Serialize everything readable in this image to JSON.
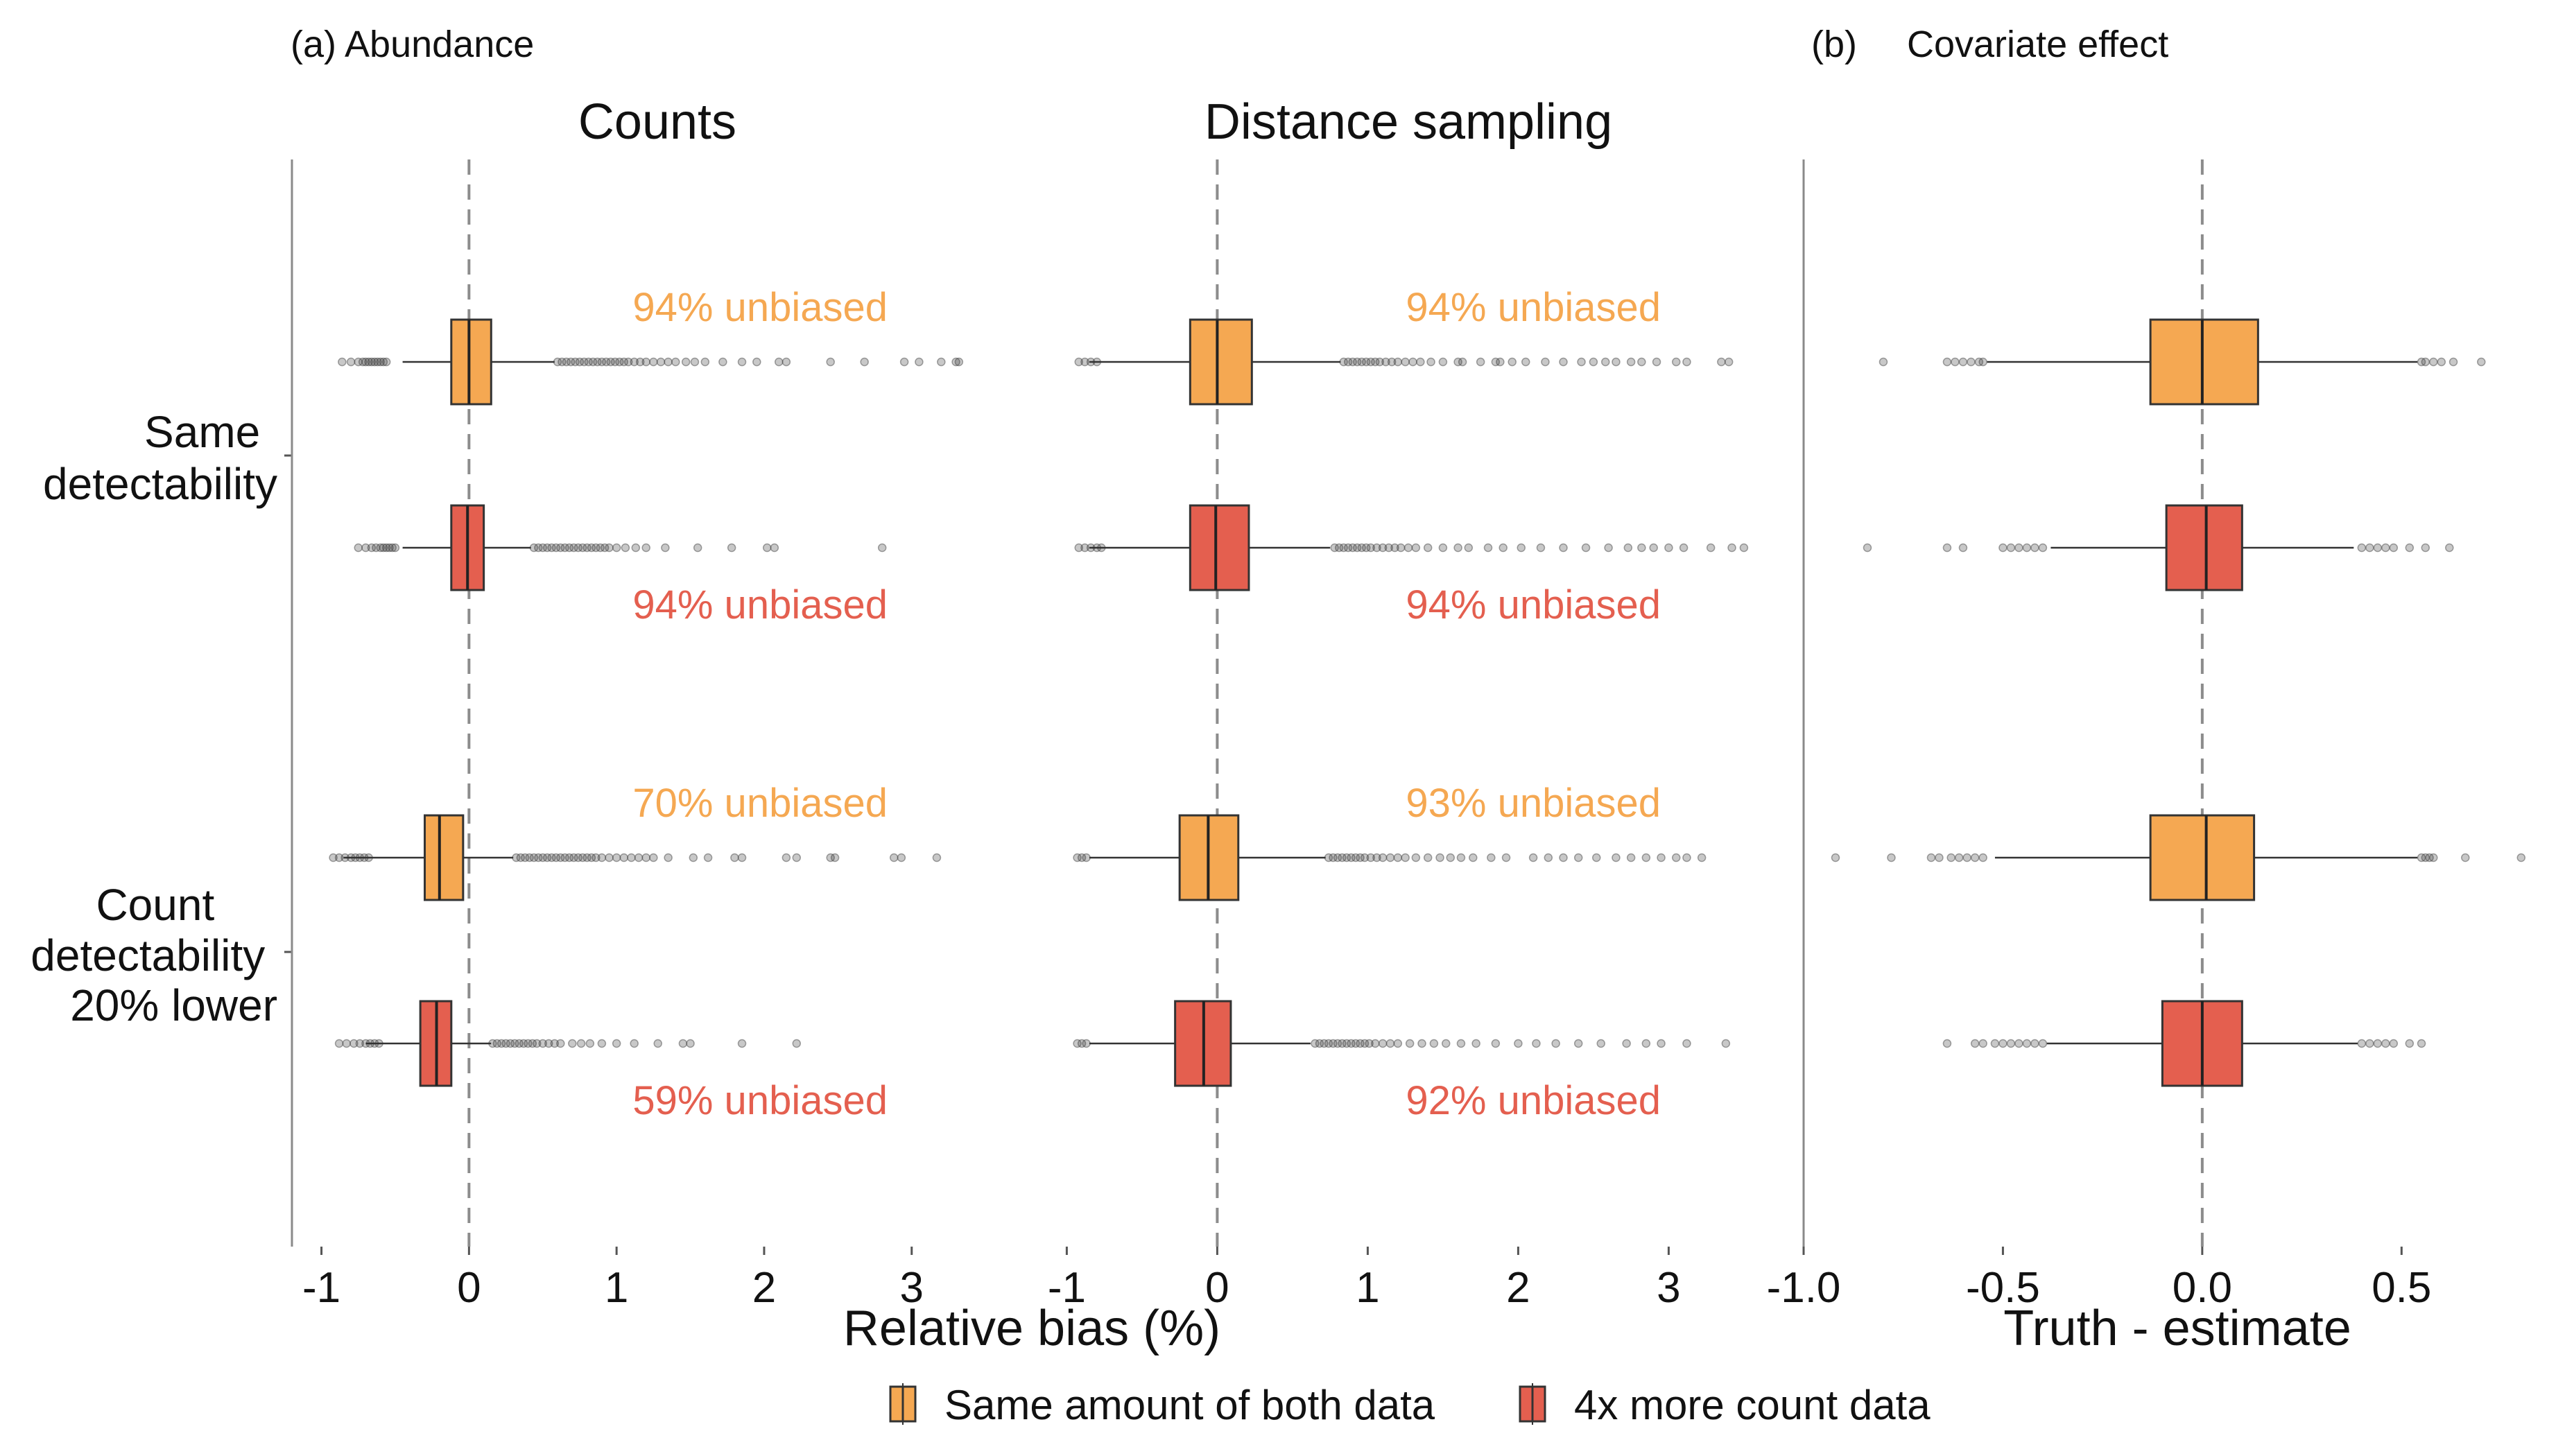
{
  "panel_labels": {
    "abundance": "(a)  Abundance",
    "covariate_tag": "(b)",
    "covariate_name": "Covariate effect"
  },
  "facet_titles": [
    "Counts",
    "Distance sampling"
  ],
  "row_labels": [
    [
      "Same",
      "detectability"
    ],
    [
      "Count",
      "detectability",
      "20% lower"
    ]
  ],
  "x_titles": {
    "abundance": "Relative bias (%)",
    "covariate": "Truth - estimate"
  },
  "legend": [
    {
      "label": "Same amount of both data",
      "color": "#F5A852"
    },
    {
      "label": "4x more count data",
      "color": "#E45F4F"
    }
  ],
  "colors": {
    "same_amount": "#F5A852",
    "more_count": "#E45F4F",
    "reference_line": "#8c8c8c",
    "box_outline": "#333333",
    "outlier": "#3a3a3a"
  },
  "chart_data": [
    {
      "type": "box",
      "panel": "Counts",
      "xlabel": "Relative bias (%)",
      "xlim": [
        -1.2,
        3.8
      ],
      "xticks": [
        -1,
        0,
        1,
        2,
        3
      ],
      "reference_line": 0,
      "groups": [
        {
          "row": "Same detectability",
          "series": "Same amount of both data",
          "q1": -0.12,
          "median": 0.0,
          "q3": 0.15,
          "whisker_low": -0.45,
          "whisker_high": 0.58,
          "outliers": [
            -0.86,
            -0.8,
            -0.75,
            -0.72,
            -0.7,
            -0.68,
            -0.66,
            -0.64,
            -0.62,
            -0.6,
            -0.58,
            -0.56,
            0.6,
            0.63,
            0.66,
            0.69,
            0.72,
            0.75,
            0.78,
            0.81,
            0.84,
            0.87,
            0.9,
            0.93,
            0.96,
            0.99,
            1.02,
            1.05,
            1.08,
            1.12,
            1.16,
            1.2,
            1.25,
            1.3,
            1.35,
            1.4,
            1.47,
            1.53,
            1.6,
            1.72,
            1.85,
            1.95,
            2.1,
            2.15,
            2.45,
            2.68,
            2.95,
            3.05,
            3.2,
            3.3,
            3.32
          ],
          "label": "94% unbiased"
        },
        {
          "row": "Same detectability",
          "series": "4x more count data",
          "q1": -0.12,
          "median": -0.01,
          "q3": 0.1,
          "whisker_low": -0.45,
          "whisker_high": 0.42,
          "outliers": [
            -0.75,
            -0.7,
            -0.66,
            -0.63,
            -0.6,
            -0.58,
            -0.56,
            -0.54,
            -0.52,
            -0.5,
            0.44,
            0.47,
            0.5,
            0.53,
            0.56,
            0.59,
            0.62,
            0.65,
            0.68,
            0.71,
            0.74,
            0.77,
            0.8,
            0.83,
            0.86,
            0.89,
            0.92,
            0.95,
            1.0,
            1.06,
            1.13,
            1.2,
            1.33,
            1.55,
            1.78,
            2.02,
            2.07,
            2.8
          ],
          "label": "94% unbiased"
        },
        {
          "row": "Count detectability 20% lower",
          "series": "Same amount of both data",
          "q1": -0.3,
          "median": -0.2,
          "q3": -0.04,
          "whisker_low": -0.85,
          "whisker_high": 0.3,
          "outliers": [
            -0.92,
            -0.88,
            -0.84,
            -0.8,
            -0.77,
            -0.74,
            -0.71,
            -0.68,
            0.32,
            0.35,
            0.38,
            0.41,
            0.44,
            0.47,
            0.5,
            0.53,
            0.56,
            0.59,
            0.62,
            0.65,
            0.68,
            0.71,
            0.74,
            0.77,
            0.8,
            0.83,
            0.86,
            0.9,
            0.95,
            1.0,
            1.05,
            1.1,
            1.15,
            1.2,
            1.25,
            1.35,
            1.52,
            1.62,
            1.8,
            1.85,
            2.15,
            2.22,
            2.45,
            2.48,
            2.88,
            2.93,
            3.17
          ],
          "label": "70% unbiased"
        },
        {
          "row": "Count detectability 20% lower",
          "series": "4x more count data",
          "q1": -0.33,
          "median": -0.22,
          "q3": -0.12,
          "whisker_low": -0.7,
          "whisker_high": 0.15,
          "outliers": [
            -0.88,
            -0.83,
            -0.78,
            -0.74,
            -0.7,
            -0.67,
            -0.64,
            -0.61,
            0.16,
            0.19,
            0.22,
            0.25,
            0.28,
            0.31,
            0.34,
            0.37,
            0.4,
            0.43,
            0.46,
            0.5,
            0.54,
            0.58,
            0.62,
            0.7,
            0.76,
            0.82,
            0.9,
            1.0,
            1.12,
            1.28,
            1.45,
            1.5,
            1.85,
            2.22
          ],
          "label": "59% unbiased"
        }
      ]
    },
    {
      "type": "box",
      "panel": "Distance sampling",
      "xlabel": "Relative bias (%)",
      "xlim": [
        -1.2,
        3.8
      ],
      "xticks": [
        -1,
        0,
        1,
        2,
        3
      ],
      "reference_line": 0,
      "groups": [
        {
          "row": "Same detectability",
          "series": "Same amount of both data",
          "q1": -0.18,
          "median": 0.0,
          "q3": 0.23,
          "whisker_low": -0.85,
          "whisker_high": 0.82,
          "outliers": [
            -0.92,
            -0.88,
            -0.84,
            -0.8,
            0.84,
            0.87,
            0.9,
            0.93,
            0.96,
            0.99,
            1.02,
            1.05,
            1.08,
            1.12,
            1.16,
            1.2,
            1.25,
            1.3,
            1.35,
            1.42,
            1.5,
            1.6,
            1.63,
            1.75,
            1.85,
            1.88,
            1.96,
            2.05,
            2.18,
            2.3,
            2.42,
            2.5,
            2.58,
            2.65,
            2.75,
            2.82,
            2.92,
            3.05,
            3.12,
            3.35,
            3.4
          ],
          "label": "94% unbiased"
        },
        {
          "row": "Same detectability",
          "series": "4x more count data",
          "q1": -0.18,
          "median": -0.01,
          "q3": 0.21,
          "whisker_low": -0.85,
          "whisker_high": 0.75,
          "outliers": [
            -0.92,
            -0.88,
            -0.84,
            -0.8,
            -0.77,
            0.78,
            0.81,
            0.84,
            0.87,
            0.9,
            0.93,
            0.96,
            0.99,
            1.02,
            1.06,
            1.1,
            1.14,
            1.18,
            1.22,
            1.27,
            1.32,
            1.4,
            1.5,
            1.6,
            1.67,
            1.8,
            1.9,
            2.02,
            2.15,
            2.3,
            2.45,
            2.6,
            2.73,
            2.82,
            2.9,
            3.0,
            3.1,
            3.28,
            3.42,
            3.5
          ],
          "label": "94% unbiased"
        },
        {
          "row": "Count detectability 20% lower",
          "series": "Same amount of both data",
          "q1": -0.25,
          "median": -0.06,
          "q3": 0.14,
          "whisker_low": -0.85,
          "whisker_high": 0.72,
          "outliers": [
            -0.93,
            -0.9,
            -0.87,
            0.74,
            0.77,
            0.8,
            0.83,
            0.86,
            0.89,
            0.92,
            0.95,
            0.98,
            1.02,
            1.06,
            1.1,
            1.15,
            1.2,
            1.25,
            1.32,
            1.4,
            1.48,
            1.55,
            1.62,
            1.7,
            1.82,
            1.92,
            2.1,
            2.2,
            2.3,
            2.4,
            2.52,
            2.65,
            2.75,
            2.85,
            2.95,
            3.05,
            3.12,
            3.22
          ],
          "label": "93% unbiased"
        },
        {
          "row": "Count detectability 20% lower",
          "series": "4x more count data",
          "q1": -0.28,
          "median": -0.09,
          "q3": 0.09,
          "whisker_low": -0.85,
          "whisker_high": 0.62,
          "outliers": [
            -0.93,
            -0.9,
            -0.87,
            0.65,
            0.68,
            0.71,
            0.74,
            0.77,
            0.8,
            0.83,
            0.86,
            0.89,
            0.92,
            0.95,
            0.98,
            1.01,
            1.05,
            1.1,
            1.15,
            1.2,
            1.28,
            1.36,
            1.44,
            1.52,
            1.62,
            1.72,
            1.85,
            2.0,
            2.12,
            2.25,
            2.4,
            2.55,
            2.72,
            2.85,
            2.95,
            3.12,
            3.38
          ],
          "label": "92% unbiased"
        }
      ]
    },
    {
      "type": "box",
      "panel": "Covariate effect",
      "xlabel": "Truth - estimate",
      "xlim": [
        -1.0,
        0.87
      ],
      "xticks": [
        -1.0,
        -0.5,
        0.0,
        0.5
      ],
      "xtick_labels": [
        "-1.0",
        "-0.5",
        "0.0",
        "0.5"
      ],
      "reference_line": 0,
      "groups": [
        {
          "row": "Same detectability",
          "series": "Same amount of both data",
          "q1": -0.13,
          "median": 0.0,
          "q3": 0.14,
          "whisker_low": -0.54,
          "whisker_high": 0.54,
          "outliers": [
            -0.8,
            -0.64,
            -0.62,
            -0.6,
            -0.58,
            -0.56,
            -0.55,
            0.55,
            0.56,
            0.58,
            0.6,
            0.63,
            0.7
          ]
        },
        {
          "row": "Same detectability",
          "series": "4x more count data",
          "q1": -0.09,
          "median": 0.01,
          "q3": 0.1,
          "whisker_low": -0.38,
          "whisker_high": 0.38,
          "outliers": [
            -0.84,
            -0.64,
            -0.6,
            -0.5,
            -0.48,
            -0.46,
            -0.44,
            -0.42,
            -0.4,
            0.4,
            0.42,
            0.44,
            0.46,
            0.48,
            0.52,
            0.56,
            0.62
          ]
        },
        {
          "row": "Count detectability 20% lower",
          "series": "Same amount of both data",
          "q1": -0.13,
          "median": 0.01,
          "q3": 0.13,
          "whisker_low": -0.52,
          "whisker_high": 0.54,
          "outliers": [
            -0.92,
            -0.78,
            -0.68,
            -0.66,
            -0.63,
            -0.61,
            -0.59,
            -0.57,
            -0.55,
            0.55,
            0.56,
            0.57,
            0.58,
            0.66,
            0.8
          ]
        },
        {
          "row": "Count detectability 20% lower",
          "series": "4x more count data",
          "q1": -0.1,
          "median": 0.0,
          "q3": 0.1,
          "whisker_low": -0.39,
          "whisker_high": 0.39,
          "outliers": [
            -0.64,
            -0.57,
            -0.55,
            -0.52,
            -0.5,
            -0.48,
            -0.46,
            -0.44,
            -0.42,
            -0.4,
            0.4,
            0.42,
            0.44,
            0.46,
            0.48,
            0.52,
            0.55
          ]
        }
      ]
    }
  ]
}
